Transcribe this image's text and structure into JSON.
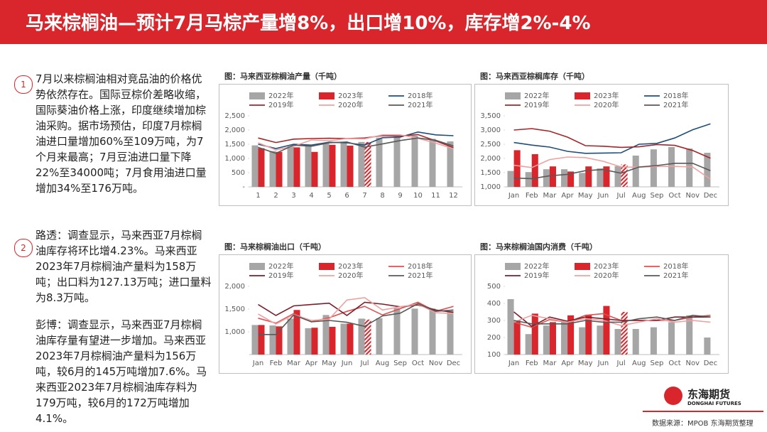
{
  "header": {
    "title": "马来棕榈油—预计7月马棕产量增8%，出口增10%，库存增2%-4%"
  },
  "notes": [
    {
      "number": "1",
      "paragraphs": [
        "7月以来棕榈油相对竞品油的价格优势依然存在。国际豆棕价差略收缩，国际葵油价格上涨，印度继续增加棕油采购。据市场预估，印度7月棕榈油进口量增加60%至109万吨，为7个月来最高；7月豆油进口量下降22%至34000吨；7月食用油进口量增加34%至176万吨。"
      ]
    },
    {
      "number": "2",
      "paragraphs": [
        "路透：调查显示，马来西亚7月棕榈油库存将环比增4.23%。马来西亚2023年7月棕榈油产量料为158万吨；出口料为127.13万吨；进口量料为8.3万吨。",
        "彭博：调查显示，马来西亚7月棕榈油库存量有望进一步增加。马来西亚2023年7月棕榈油产量料为156万吨，较6月的145万吨增加7.6%。马来西亚2023年7月棕榈油库存料为179万吨，较6月的172万吨增加4.1%。"
      ]
    }
  ],
  "chart_data": [
    {
      "type": "bar_line",
      "title": "图：马来西亚棕榈油产量（千吨）",
      "categories": [
        "1",
        "2",
        "3",
        "4",
        "5",
        "6",
        "7",
        "8",
        "9",
        "10",
        "11",
        "12"
      ],
      "ylim": [
        0,
        2500
      ],
      "yticks": [
        {
          "value": 0,
          "label": "-"
        },
        500,
        {
          "value": 1000,
          "label": "1,000"
        },
        {
          "value": 1500,
          "label": "1,500"
        },
        {
          "value": 2000,
          "label": "2,000"
        },
        {
          "value": 2500,
          "label": "2,500"
        }
      ],
      "series": [
        {
          "name": "2022年",
          "type": "bar",
          "color": "#a6a6a6",
          "values": [
            1460,
            1260,
            1430,
            1480,
            1530,
            1550,
            1580,
            1730,
            1770,
            1800,
            1690,
            1600
          ]
        },
        {
          "name": "2023年",
          "type": "bar",
          "color": "#d9262c",
          "hatch_last": true,
          "values": [
            1360,
            1230,
            1390,
            1230,
            1480,
            1450,
            1580,
            null,
            null,
            null,
            null,
            null
          ]
        },
        {
          "name": "2018年",
          "type": "line",
          "color": "#1f4e79",
          "values": [
            1500,
            1350,
            1500,
            1470,
            1570,
            1550,
            1470,
            1730,
            1750,
            1930,
            1830,
            1800
          ]
        },
        {
          "name": "2019年",
          "type": "line",
          "color": "#a5262a",
          "values": [
            1720,
            1560,
            1680,
            1700,
            1710,
            1700,
            1720,
            1800,
            1790,
            1840,
            1620,
            1380
          ]
        },
        {
          "name": "2020年",
          "type": "line",
          "color": "#f0a0a0",
          "values": [
            1550,
            1300,
            1430,
            1650,
            1620,
            1700,
            1690,
            1830,
            1830,
            1710,
            1540,
            1340
          ]
        },
        {
          "name": "2021年",
          "type": "line",
          "color": "#595959",
          "values": [
            1390,
            1180,
            1470,
            1430,
            1550,
            1580,
            1400,
            1510,
            1630,
            1720,
            1640,
            1440
          ]
        }
      ]
    },
    {
      "type": "bar_line",
      "title": "图：马来西亚棕榈库存（千吨）",
      "categories": [
        "Jan",
        "Feb",
        "Mar",
        "Apr",
        "May",
        "Jun",
        "Jul",
        "Aug",
        "Sep",
        "Oct",
        "Nov",
        "Dec"
      ],
      "ylim": [
        1000,
        3500
      ],
      "yticks": [
        {
          "value": 1000,
          "label": "1,000"
        },
        {
          "value": 1500,
          "label": "1,500"
        },
        {
          "value": 2000,
          "label": "2,000"
        },
        {
          "value": 2500,
          "label": "2,500"
        },
        {
          "value": 3000,
          "label": "3,000"
        },
        {
          "value": 3500,
          "label": "3,500"
        }
      ],
      "series": [
        {
          "name": "2022年",
          "type": "bar",
          "color": "#a6a6a6",
          "values": [
            1560,
            1520,
            1620,
            1620,
            1490,
            1650,
            1730,
            2100,
            2320,
            2400,
            2350,
            2200
          ]
        },
        {
          "name": "2023年",
          "type": "bar",
          "color": "#d9262c",
          "hatch_last": true,
          "values": [
            2290,
            2150,
            1720,
            1540,
            1720,
            1720,
            1790,
            null,
            null,
            null,
            null,
            null
          ]
        },
        {
          "name": "2018年",
          "type": "line",
          "color": "#1f4e79",
          "values": [
            2560,
            2470,
            2400,
            2250,
            2180,
            2190,
            2200,
            2500,
            2530,
            2720,
            3010,
            3220
          ]
        },
        {
          "name": "2019年",
          "type": "line",
          "color": "#a5262a",
          "values": [
            3000,
            3050,
            2960,
            2750,
            2450,
            2430,
            2390,
            2410,
            2490,
            2460,
            2280,
            2010
          ]
        },
        {
          "name": "2020年",
          "type": "line",
          "color": "#f0a0a0",
          "values": [
            1760,
            1680,
            1960,
            2050,
            2030,
            1900,
            1700,
            1690,
            1720,
            1720,
            1700,
            1270
          ]
        },
        {
          "name": "2021年",
          "type": "line",
          "color": "#595959",
          "values": [
            1310,
            1290,
            1390,
            1440,
            1570,
            1610,
            1480,
            1700,
            1750,
            1830,
            1830,
            1570
          ]
        }
      ]
    },
    {
      "type": "bar_line",
      "title": "图：马来棕榈油出口（千吨）",
      "categories": [
        "Jan",
        "Feb",
        "Mar",
        "Apr",
        "May",
        "Jun",
        "Jul",
        "Aug",
        "Sep",
        "Oct",
        "Nov",
        "Dec"
      ],
      "ylim": [
        500,
        2000
      ],
      "yticks": [
        {
          "value": 1000,
          "label": "1,000"
        },
        {
          "value": 1500,
          "label": "1,500"
        },
        {
          "value": 2000,
          "label": "2,000"
        }
      ],
      "series": [
        {
          "name": "2022年",
          "type": "bar",
          "color": "#a6a6a6",
          "values": [
            1150,
            1140,
            1290,
            1080,
            1370,
            1180,
            1290,
            1300,
            1520,
            1510,
            1510,
            1460
          ]
        },
        {
          "name": "2023年",
          "type": "bar",
          "color": "#d9262c",
          "hatch_last": true,
          "values": [
            1150,
            1120,
            1480,
            1090,
            1110,
            1180,
            1270,
            null,
            null,
            null,
            null,
            null
          ]
        },
        {
          "name": "2018年",
          "type": "line",
          "color": "#e05050",
          "values": [
            1300,
            1190,
            1400,
            1220,
            1310,
            1450,
            1560,
            1370,
            1510,
            1650,
            1450,
            1560
          ]
        },
        {
          "name": "2019年",
          "type": "line",
          "color": "#7a1f2b",
          "values": [
            1600,
            1360,
            1570,
            1600,
            1630,
            1360,
            1650,
            1610,
            1550,
            1590,
            1480,
            1430
          ]
        },
        {
          "name": "2020年",
          "type": "line",
          "color": "#f0a0a0",
          "values": [
            1390,
            1170,
            1380,
            1250,
            1280,
            1700,
            1750,
            1480,
            1550,
            1610,
            1420,
            1400
          ]
        },
        {
          "name": "2021年",
          "type": "line",
          "color": "#595959",
          "values": [
            940,
            940,
            1370,
            1220,
            1250,
            1210,
            1120,
            1350,
            1410,
            1620,
            1450,
            1480
          ]
        }
      ]
    },
    {
      "type": "bar_line",
      "title": "图：马来棕榈油国内消费（千吨）",
      "categories": [
        "Jan",
        "Feb",
        "Mar",
        "Apr",
        "May",
        "Jun",
        "Jul",
        "Aug",
        "Sep",
        "Oct",
        "Nov",
        "Dec"
      ],
      "ylim": [
        100,
        500
      ],
      "yticks": [
        100,
        200,
        300,
        400,
        500
      ],
      "series": [
        {
          "name": "2022年",
          "type": "bar",
          "color": "#a6a6a6",
          "values": [
            425,
            220,
            270,
            300,
            260,
            270,
            250,
            250,
            260,
            290,
            330,
            200
          ]
        },
        {
          "name": "2023年",
          "type": "bar",
          "color": "#d9262c",
          "hatch_last": true,
          "values": [
            300,
            340,
            290,
            330,
            330,
            385,
            350,
            null,
            null,
            null,
            null,
            null
          ]
        },
        {
          "name": "2018年",
          "type": "line",
          "color": "#e05050",
          "values": [
            290,
            260,
            305,
            290,
            330,
            340,
            300,
            300,
            300,
            300,
            320,
            330
          ]
        },
        {
          "name": "2019年",
          "type": "line",
          "color": "#7a1f2b",
          "values": [
            350,
            265,
            320,
            295,
            320,
            310,
            300,
            300,
            300,
            320,
            320,
            320
          ]
        },
        {
          "name": "2020年",
          "type": "line",
          "color": "#f0a0a0",
          "values": [
            290,
            330,
            310,
            290,
            310,
            300,
            270,
            290,
            310,
            290,
            300,
            290
          ]
        },
        {
          "name": "2021年",
          "type": "line",
          "color": "#595959",
          "values": [
            300,
            280,
            280,
            280,
            300,
            290,
            290,
            310,
            320,
            300,
            330,
            320
          ]
        }
      ]
    }
  ],
  "footer": {
    "logo_cn": "东海期货",
    "logo_en": "DONGHAI FUTURES",
    "source": "数据来源：MPOB 东海期货整理"
  }
}
